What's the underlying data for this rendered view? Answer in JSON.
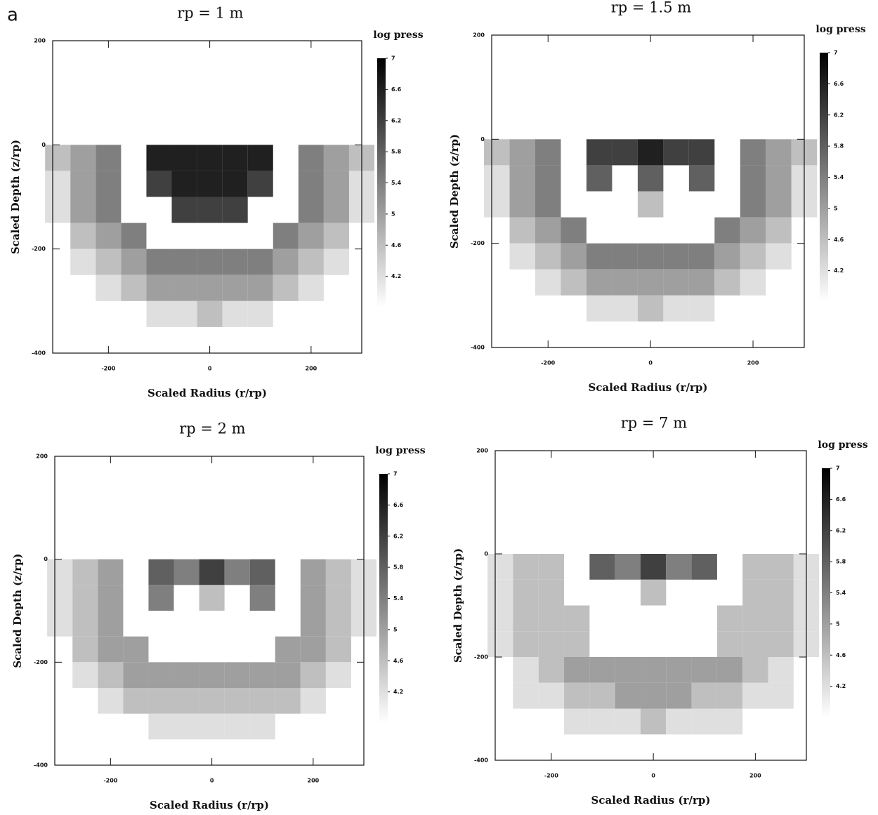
{
  "label": "a",
  "chart_data": [
    {
      "type": "heatmap",
      "title": "rp = 1 m",
      "xlabel": "Scaled Radius (r/rp)",
      "ylabel": "Scaled Depth (z/rp)",
      "colorbar_label": "log press",
      "x": [
        -300,
        -250,
        -200,
        -150,
        -100,
        -50,
        0,
        50,
        100,
        150,
        200,
        250,
        300
      ],
      "y": [
        0,
        -50,
        -100,
        -150,
        -200,
        -250,
        -300
      ],
      "z": [
        [
          4.6,
          5.0,
          5.4,
          null,
          6.6,
          6.6,
          6.6,
          6.6,
          6.6,
          null,
          5.4,
          5.0,
          4.6
        ],
        [
          4.2,
          5.0,
          5.4,
          null,
          6.2,
          6.6,
          6.6,
          6.6,
          6.2,
          null,
          5.4,
          5.0,
          4.2
        ],
        [
          4.2,
          5.0,
          5.4,
          null,
          null,
          6.2,
          6.2,
          6.2,
          null,
          null,
          5.4,
          5.0,
          4.2
        ],
        [
          null,
          4.6,
          5.0,
          5.4,
          null,
          null,
          null,
          null,
          null,
          5.4,
          5.0,
          4.6,
          null
        ],
        [
          null,
          4.2,
          4.6,
          5.0,
          5.4,
          5.4,
          5.4,
          5.4,
          5.4,
          5.0,
          4.6,
          4.2,
          null
        ],
        [
          null,
          null,
          4.2,
          4.6,
          5.0,
          5.0,
          5.0,
          5.0,
          5.0,
          4.6,
          4.2,
          null,
          null
        ],
        [
          null,
          null,
          null,
          null,
          4.2,
          4.2,
          4.6,
          4.2,
          4.2,
          null,
          null,
          null,
          null
        ]
      ],
      "xlim": [
        -310,
        300
      ],
      "ylim": [
        -400,
        200
      ],
      "xticks": [
        -200,
        0,
        200
      ],
      "yticks": [
        -400,
        -200,
        0,
        200
      ],
      "clim": [
        3.8,
        7
      ],
      "cticks": [
        4.2,
        4.6,
        5,
        5.4,
        5.8,
        6.2,
        6.6,
        7
      ],
      "colormap": [
        "#ffffff",
        "#000000"
      ]
    },
    {
      "type": "heatmap",
      "title": "rp = 1.5 m",
      "xlabel": "Scaled Radius (r/rp)",
      "ylabel": "Scaled Depth (z/rp)",
      "colorbar_label": "log press",
      "x": [
        -300,
        -250,
        -200,
        -150,
        -100,
        -50,
        0,
        50,
        100,
        150,
        200,
        250,
        300
      ],
      "y": [
        0,
        -50,
        -100,
        -150,
        -200,
        -250,
        -300
      ],
      "z": [
        [
          4.6,
          5.0,
          5.4,
          null,
          6.2,
          6.2,
          6.6,
          6.2,
          6.2,
          null,
          5.4,
          5.0,
          4.6
        ],
        [
          4.2,
          5.0,
          5.4,
          null,
          5.8,
          null,
          5.8,
          null,
          5.8,
          null,
          5.4,
          5.0,
          4.2
        ],
        [
          4.2,
          5.0,
          5.4,
          null,
          null,
          null,
          4.6,
          null,
          null,
          null,
          5.4,
          5.0,
          4.2
        ],
        [
          null,
          4.6,
          5.0,
          5.4,
          null,
          null,
          null,
          null,
          null,
          5.4,
          5.0,
          4.6,
          null
        ],
        [
          null,
          4.2,
          4.6,
          5.0,
          5.4,
          5.4,
          5.4,
          5.4,
          5.4,
          5.0,
          4.6,
          4.2,
          null
        ],
        [
          null,
          null,
          4.2,
          4.6,
          5.0,
          5.0,
          5.0,
          5.0,
          5.0,
          4.6,
          4.2,
          null,
          null
        ],
        [
          null,
          null,
          null,
          null,
          4.2,
          4.2,
          4.6,
          4.2,
          4.2,
          null,
          null,
          null,
          null
        ]
      ],
      "xlim": [
        -310,
        300
      ],
      "ylim": [
        -400,
        200
      ],
      "xticks": [
        -200,
        0,
        200
      ],
      "yticks": [
        -400,
        -200,
        0,
        200
      ],
      "clim": [
        3.8,
        7
      ],
      "cticks": [
        4.2,
        4.6,
        5,
        5.4,
        5.8,
        6.2,
        6.6,
        7
      ],
      "colormap": [
        "#ffffff",
        "#000000"
      ]
    },
    {
      "type": "heatmap",
      "title": "rp = 2 m",
      "xlabel": "Scaled Radius (r/rp)",
      "ylabel": "Scaled Depth (z/rp)",
      "colorbar_label": "log press",
      "x": [
        -300,
        -250,
        -200,
        -150,
        -100,
        -50,
        0,
        50,
        100,
        150,
        200,
        250,
        300
      ],
      "y": [
        0,
        -50,
        -100,
        -150,
        -200,
        -250,
        -300
      ],
      "z": [
        [
          4.2,
          4.6,
          5.0,
          null,
          5.8,
          5.4,
          6.2,
          5.4,
          5.8,
          null,
          5.0,
          4.6,
          4.2
        ],
        [
          4.2,
          4.6,
          5.0,
          null,
          5.4,
          null,
          4.6,
          null,
          5.4,
          null,
          5.0,
          4.6,
          4.2
        ],
        [
          4.2,
          4.6,
          5.0,
          null,
          null,
          null,
          null,
          null,
          null,
          null,
          5.0,
          4.6,
          4.2
        ],
        [
          null,
          4.6,
          5.0,
          5.0,
          null,
          null,
          null,
          null,
          null,
          5.0,
          5.0,
          4.6,
          null
        ],
        [
          null,
          4.2,
          4.6,
          5.0,
          5.0,
          5.0,
          5.0,
          5.0,
          5.0,
          5.0,
          4.6,
          4.2,
          null
        ],
        [
          null,
          null,
          4.2,
          4.6,
          4.6,
          4.6,
          4.6,
          4.6,
          4.6,
          4.6,
          4.2,
          null,
          null
        ],
        [
          null,
          null,
          null,
          null,
          4.2,
          4.2,
          4.2,
          4.2,
          4.2,
          null,
          null,
          null,
          null
        ]
      ],
      "xlim": [
        -310,
        300
      ],
      "ylim": [
        -400,
        200
      ],
      "xticks": [
        -200,
        0,
        200
      ],
      "yticks": [
        -400,
        -200,
        0,
        200
      ],
      "clim": [
        3.8,
        7
      ],
      "cticks": [
        4.2,
        4.6,
        5,
        5.4,
        5.8,
        6.2,
        6.6,
        7
      ],
      "colormap": [
        "#ffffff",
        "#000000"
      ]
    },
    {
      "type": "heatmap",
      "title": "rp = 7 m",
      "xlabel": "Scaled Radius (r/rp)",
      "ylabel": "Scaled Depth (z/rp)",
      "colorbar_label": "log press",
      "x": [
        -300,
        -250,
        -200,
        -150,
        -100,
        -50,
        0,
        50,
        100,
        150,
        200,
        250,
        300
      ],
      "y": [
        0,
        -50,
        -100,
        -150,
        -200,
        -250,
        -300
      ],
      "z": [
        [
          4.2,
          4.6,
          4.6,
          null,
          5.8,
          5.4,
          6.2,
          5.4,
          5.8,
          null,
          4.6,
          4.6,
          4.2
        ],
        [
          4.2,
          4.6,
          4.6,
          null,
          null,
          null,
          4.6,
          null,
          null,
          null,
          4.6,
          4.6,
          4.2
        ],
        [
          4.2,
          4.6,
          4.6,
          4.6,
          null,
          null,
          null,
          null,
          null,
          4.6,
          4.6,
          4.6,
          4.2
        ],
        [
          4.2,
          4.6,
          4.6,
          4.6,
          null,
          null,
          null,
          null,
          null,
          4.6,
          4.6,
          4.6,
          4.2
        ],
        [
          null,
          4.2,
          4.6,
          5.0,
          5.0,
          5.0,
          5.0,
          5.0,
          5.0,
          5.0,
          4.6,
          4.2,
          null
        ],
        [
          null,
          4.2,
          4.2,
          4.6,
          4.6,
          5.0,
          5.0,
          5.0,
          4.6,
          4.6,
          4.2,
          4.2,
          null
        ],
        [
          null,
          null,
          null,
          4.2,
          4.2,
          4.2,
          4.6,
          4.2,
          4.2,
          4.2,
          null,
          null,
          null
        ]
      ],
      "xlim": [
        -310,
        300
      ],
      "ylim": [
        -400,
        200
      ],
      "xticks": [
        -200,
        0,
        200
      ],
      "yticks": [
        -400,
        -200,
        0,
        200
      ],
      "clim": [
        3.8,
        7
      ],
      "cticks": [
        4.2,
        4.6,
        5,
        5.4,
        5.8,
        6.2,
        6.6,
        7
      ],
      "colormap": [
        "#ffffff",
        "#000000"
      ]
    }
  ]
}
